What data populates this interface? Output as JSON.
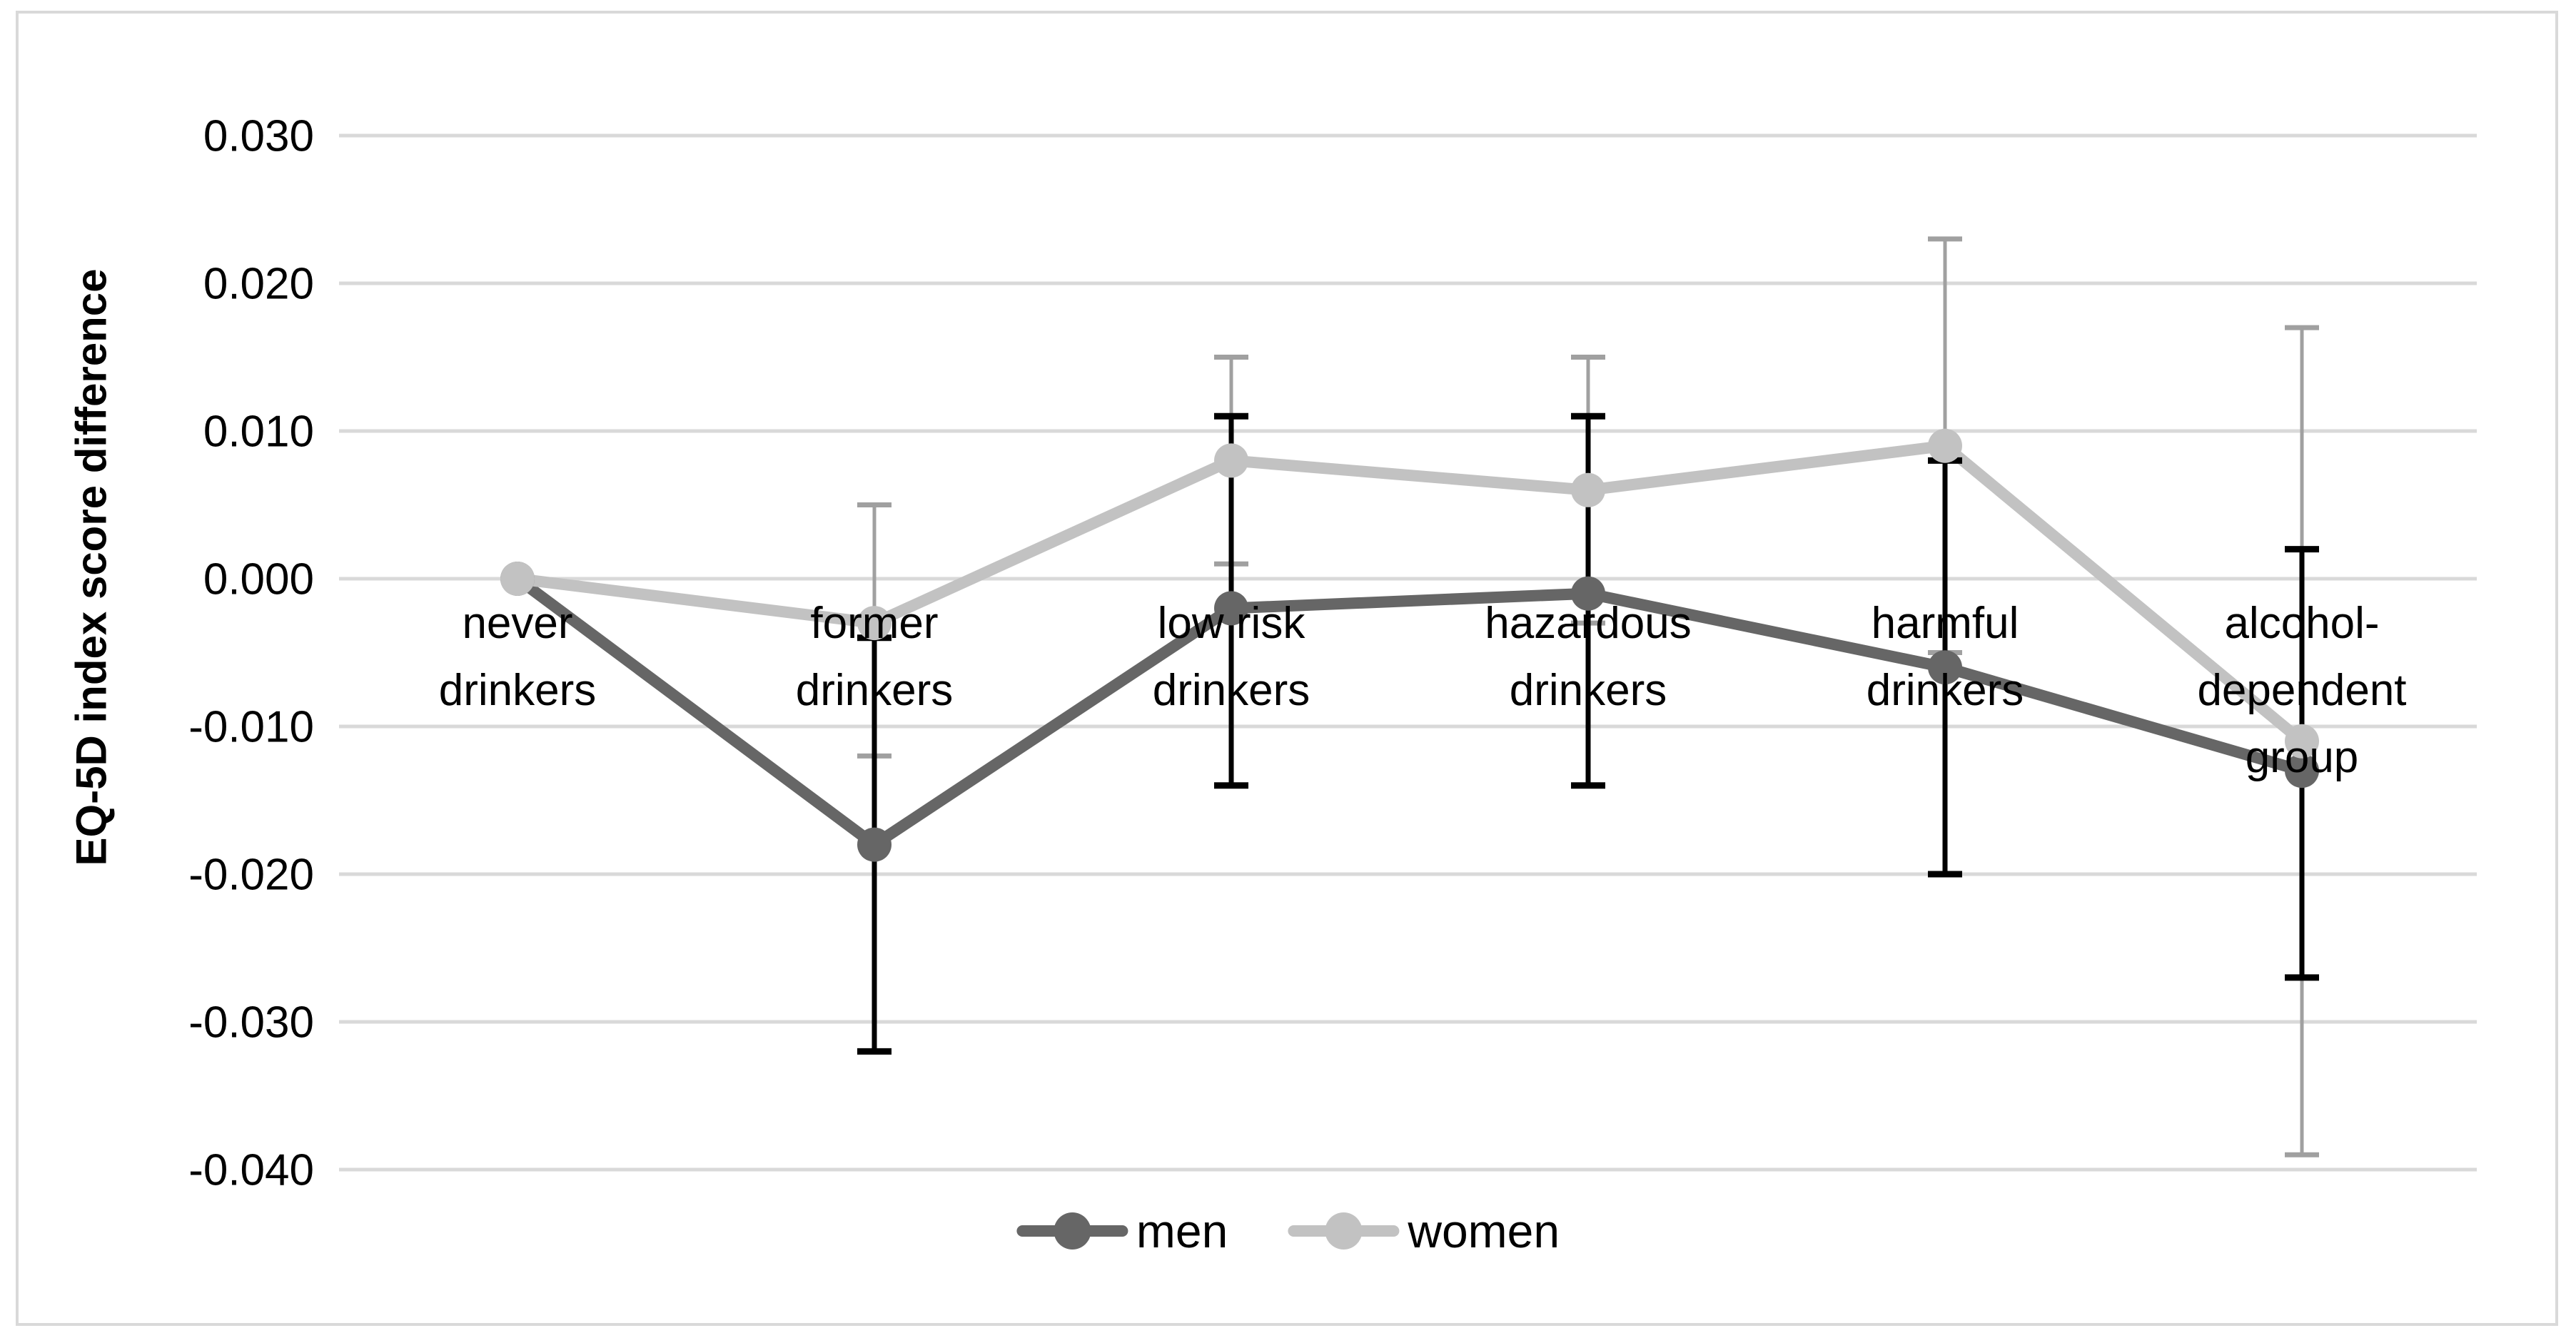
{
  "figure": {
    "y_axis_title": "EQ-5D index score difference"
  },
  "legend": {
    "items": [
      {
        "label": "men"
      },
      {
        "label": "women"
      }
    ]
  },
  "colors": {
    "men_line": "#666666",
    "women_line": "#c2c2c2",
    "men_error_bar": "#000000",
    "women_error_bar": "#a0a0a0",
    "gridline": "#d9d9d9",
    "frame_border": "#d9d9d9",
    "text": "#000000",
    "background": "#ffffff"
  },
  "chart_data": {
    "type": "line",
    "title": "",
    "xlabel": "",
    "ylabel": "EQ-5D index score difference",
    "ylim": [
      -0.04,
      0.03
    ],
    "grid": true,
    "legend_position": "bottom",
    "y_ticks": [
      "0.030",
      "0.020",
      "0.010",
      "0.000",
      "-0.010",
      "-0.020",
      "-0.030",
      "-0.040"
    ],
    "y_tick_values": [
      0.03,
      0.02,
      0.01,
      0.0,
      -0.01,
      -0.02,
      -0.03,
      -0.04
    ],
    "categories": [
      "never drinkers",
      "former drinkers",
      "low risk drinkers",
      "hazardous drinkers",
      "harmful drinkers",
      "alcohol-dependent group"
    ],
    "category_label_lines": [
      [
        "never",
        "drinkers"
      ],
      [
        "former",
        "drinkers"
      ],
      [
        "low risk",
        "drinkers"
      ],
      [
        "hazardous",
        "drinkers"
      ],
      [
        "harmful",
        "drinkers"
      ],
      [
        "alcohol-",
        "dependent",
        "group"
      ]
    ],
    "series": [
      {
        "name": "men",
        "values": [
          0.0,
          -0.018,
          -0.002,
          -0.001,
          -0.006,
          -0.013
        ],
        "ci_low": [
          null,
          -0.032,
          -0.014,
          -0.014,
          -0.02,
          -0.027
        ],
        "ci_high": [
          null,
          -0.004,
          0.011,
          0.011,
          0.008,
          0.002
        ]
      },
      {
        "name": "women",
        "values": [
          0.0,
          -0.003,
          0.008,
          0.006,
          0.009,
          -0.011
        ],
        "ci_low": [
          null,
          -0.012,
          0.001,
          -0.003,
          -0.005,
          -0.039
        ],
        "ci_high": [
          null,
          0.005,
          0.015,
          0.015,
          0.023,
          0.017
        ]
      }
    ]
  }
}
